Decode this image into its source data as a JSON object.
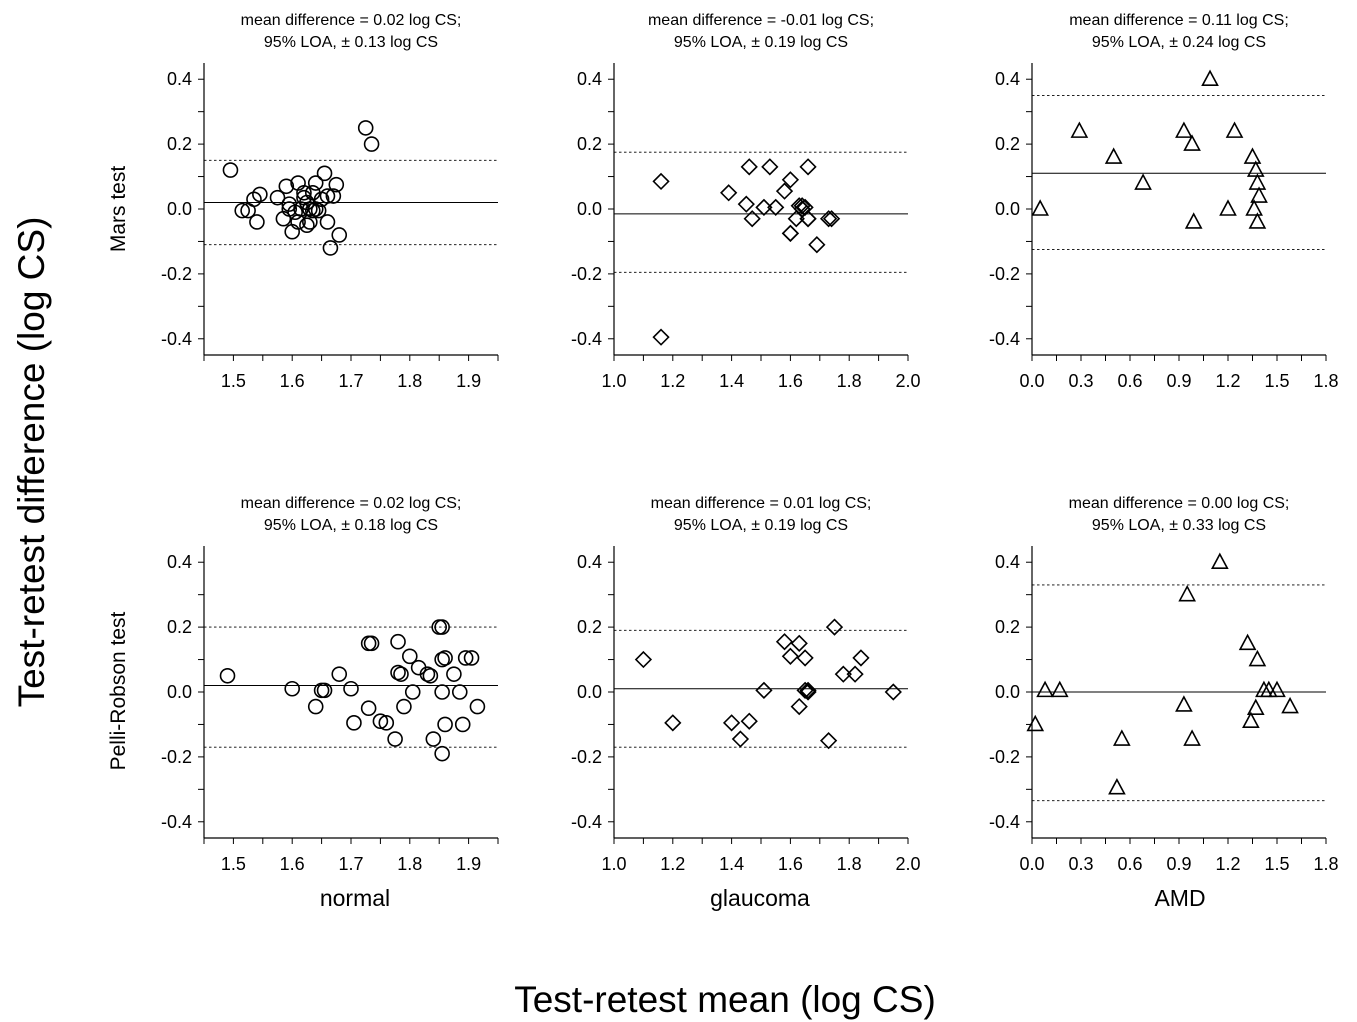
{
  "figure": {
    "ylabel": "Test-retest difference (log CS)",
    "xlabel": "Test-retest mean (log CS)",
    "row_labels": [
      "Mars test",
      "Pelli-Robson test"
    ],
    "col_labels": [
      "normal",
      "glaucoma",
      "AMD"
    ]
  },
  "chart_data": [
    {
      "type": "scatter",
      "row": 0,
      "col": 0,
      "marker": "circle",
      "title": [
        "mean difference = 0.02 log CS;",
        "95% LOA, ± 0.13 log CS"
      ],
      "xlim": [
        1.45,
        1.95
      ],
      "ylim": [
        -0.45,
        0.45
      ],
      "xticks": [
        1.5,
        1.6,
        1.7,
        1.8,
        1.9
      ],
      "xticklabels": [
        "1.5",
        "1.6",
        "1.7",
        "1.8",
        "1.9"
      ],
      "yticks": [
        -0.4,
        -0.2,
        0.0,
        0.2,
        0.4
      ],
      "yticklabels": [
        "-0.4",
        "-0.2",
        "0.0",
        "0.2",
        "0.4"
      ],
      "mean_line": 0.02,
      "loa_upper": 0.15,
      "loa_lower": -0.11,
      "points": [
        [
          1.495,
          0.12
        ],
        [
          1.515,
          -0.005
        ],
        [
          1.525,
          -0.005
        ],
        [
          1.535,
          0.03
        ],
        [
          1.54,
          -0.04
        ],
        [
          1.545,
          0.045
        ],
        [
          1.575,
          0.035
        ],
        [
          1.585,
          -0.03
        ],
        [
          1.59,
          0.07
        ],
        [
          1.595,
          0.015
        ],
        [
          1.595,
          0.0
        ],
        [
          1.6,
          -0.07
        ],
        [
          1.605,
          -0.01
        ],
        [
          1.61,
          -0.04
        ],
        [
          1.61,
          0.08
        ],
        [
          1.615,
          0.0
        ],
        [
          1.62,
          0.05
        ],
        [
          1.62,
          0.035
        ],
        [
          1.625,
          -0.05
        ],
        [
          1.625,
          0.02
        ],
        [
          1.63,
          0.0
        ],
        [
          1.63,
          -0.04
        ],
        [
          1.635,
          0.05
        ],
        [
          1.635,
          -0.005
        ],
        [
          1.64,
          0.08
        ],
        [
          1.64,
          0.0
        ],
        [
          1.645,
          -0.005
        ],
        [
          1.65,
          0.03
        ],
        [
          1.655,
          0.11
        ],
        [
          1.66,
          0.04
        ],
        [
          1.66,
          -0.04
        ],
        [
          1.665,
          -0.12
        ],
        [
          1.67,
          0.04
        ],
        [
          1.675,
          0.075
        ],
        [
          1.68,
          -0.08
        ],
        [
          1.725,
          0.25
        ],
        [
          1.735,
          0.2
        ]
      ]
    },
    {
      "type": "scatter",
      "row": 0,
      "col": 1,
      "marker": "diamond",
      "title": [
        "mean difference = -0.01 log CS;",
        "95% LOA, ± 0.19 log CS"
      ],
      "xlim": [
        1.0,
        2.0
      ],
      "ylim": [
        -0.45,
        0.45
      ],
      "xticks": [
        1.0,
        1.2,
        1.4,
        1.6,
        1.8,
        2.0
      ],
      "xticklabels": [
        "1.0",
        "1.2",
        "1.4",
        "1.6",
        "1.8",
        "2.0"
      ],
      "yticks": [
        -0.4,
        -0.2,
        0.0,
        0.2,
        0.4
      ],
      "yticklabels": [
        "-0.4",
        "-0.2",
        "0.0",
        "0.2",
        "0.4"
      ],
      "mean_line": -0.015,
      "loa_upper": 0.175,
      "loa_lower": -0.195,
      "points": [
        [
          1.16,
          0.085
        ],
        [
          1.16,
          -0.395
        ],
        [
          1.39,
          0.05
        ],
        [
          1.45,
          0.015
        ],
        [
          1.46,
          0.13
        ],
        [
          1.47,
          -0.03
        ],
        [
          1.51,
          0.005
        ],
        [
          1.53,
          0.13
        ],
        [
          1.55,
          0.005
        ],
        [
          1.58,
          0.055
        ],
        [
          1.6,
          0.09
        ],
        [
          1.6,
          -0.075
        ],
        [
          1.6,
          -0.075
        ],
        [
          1.62,
          -0.03
        ],
        [
          1.63,
          0.01
        ],
        [
          1.64,
          0.0
        ],
        [
          1.64,
          0.01
        ],
        [
          1.65,
          0.005
        ],
        [
          1.66,
          0.13
        ],
        [
          1.66,
          -0.03
        ],
        [
          1.66,
          -0.03
        ],
        [
          1.69,
          -0.11
        ],
        [
          1.73,
          -0.03
        ],
        [
          1.74,
          -0.03
        ]
      ]
    },
    {
      "type": "scatter",
      "row": 0,
      "col": 2,
      "marker": "triangle",
      "title": [
        "mean difference = 0.11 log CS;",
        "95% LOA, ± 0.24 log CS"
      ],
      "xlim": [
        0.0,
        1.8
      ],
      "ylim": [
        -0.45,
        0.45
      ],
      "xticks": [
        0.0,
        0.3,
        0.6,
        0.9,
        1.2,
        1.5,
        1.8
      ],
      "xticklabels": [
        "0.0",
        "0.3",
        "0.6",
        "0.9",
        "1.2",
        "1.5",
        "1.8"
      ],
      "yticks": [
        -0.4,
        -0.2,
        0.0,
        0.2,
        0.4
      ],
      "yticklabels": [
        "-0.4",
        "-0.2",
        "0.0",
        "0.2",
        "0.4"
      ],
      "mean_line": 0.11,
      "loa_upper": 0.35,
      "loa_lower": -0.125,
      "points": [
        [
          0.05,
          0.0
        ],
        [
          0.29,
          0.24
        ],
        [
          0.5,
          0.16
        ],
        [
          0.68,
          0.08
        ],
        [
          0.93,
          0.24
        ],
        [
          0.98,
          0.2
        ],
        [
          0.99,
          -0.04
        ],
        [
          1.09,
          0.4
        ],
        [
          1.2,
          0.0
        ],
        [
          1.24,
          0.24
        ],
        [
          1.35,
          0.16
        ],
        [
          1.37,
          0.12
        ],
        [
          1.38,
          0.08
        ],
        [
          1.39,
          0.04
        ],
        [
          1.36,
          0.0
        ],
        [
          1.38,
          -0.04
        ]
      ]
    },
    {
      "type": "scatter",
      "row": 1,
      "col": 0,
      "marker": "circle",
      "title": [
        "mean difference = 0.02 log CS;",
        "95% LOA, ± 0.18 log CS"
      ],
      "xlim": [
        1.45,
        1.95
      ],
      "ylim": [
        -0.45,
        0.45
      ],
      "xticks": [
        1.5,
        1.6,
        1.7,
        1.8,
        1.9
      ],
      "xticklabels": [
        "1.5",
        "1.6",
        "1.7",
        "1.8",
        "1.9"
      ],
      "yticks": [
        -0.4,
        -0.2,
        0.0,
        0.2,
        0.4
      ],
      "yticklabels": [
        "-0.4",
        "-0.2",
        "0.0",
        "0.2",
        "0.4"
      ],
      "mean_line": 0.02,
      "loa_upper": 0.2,
      "loa_lower": -0.17,
      "points": [
        [
          1.49,
          0.05
        ],
        [
          1.6,
          0.01
        ],
        [
          1.64,
          -0.045
        ],
        [
          1.65,
          0.005
        ],
        [
          1.655,
          0.005
        ],
        [
          1.68,
          0.055
        ],
        [
          1.7,
          0.01
        ],
        [
          1.705,
          -0.095
        ],
        [
          1.73,
          0.15
        ],
        [
          1.735,
          0.15
        ],
        [
          1.73,
          -0.05
        ],
        [
          1.75,
          -0.09
        ],
        [
          1.76,
          -0.095
        ],
        [
          1.775,
          -0.145
        ],
        [
          1.78,
          0.155
        ],
        [
          1.78,
          0.06
        ],
        [
          1.785,
          0.055
        ],
        [
          1.79,
          -0.045
        ],
        [
          1.8,
          0.11
        ],
        [
          1.805,
          0.0
        ],
        [
          1.815,
          0.075
        ],
        [
          1.83,
          0.055
        ],
        [
          1.835,
          0.05
        ],
        [
          1.84,
          -0.145
        ],
        [
          1.85,
          0.2
        ],
        [
          1.855,
          0.2
        ],
        [
          1.855,
          0.1
        ],
        [
          1.855,
          0.0
        ],
        [
          1.86,
          0.105
        ],
        [
          1.855,
          -0.19
        ],
        [
          1.86,
          -0.1
        ],
        [
          1.875,
          0.055
        ],
        [
          1.885,
          0.0
        ],
        [
          1.895,
          0.105
        ],
        [
          1.905,
          0.105
        ],
        [
          1.89,
          -0.1
        ],
        [
          1.915,
          -0.045
        ]
      ]
    },
    {
      "type": "scatter",
      "row": 1,
      "col": 1,
      "marker": "diamond",
      "title": [
        "mean difference = 0.01 log CS;",
        "95% LOA, ± 0.19 log CS"
      ],
      "xlim": [
        1.0,
        2.0
      ],
      "ylim": [
        -0.45,
        0.45
      ],
      "xticks": [
        1.0,
        1.2,
        1.4,
        1.6,
        1.8,
        2.0
      ],
      "xticklabels": [
        "1.0",
        "1.2",
        "1.4",
        "1.6",
        "1.8",
        "2.0"
      ],
      "yticks": [
        -0.4,
        -0.2,
        0.0,
        0.2,
        0.4
      ],
      "yticklabels": [
        "-0.4",
        "-0.2",
        "0.0",
        "0.2",
        "0.4"
      ],
      "mean_line": 0.01,
      "loa_upper": 0.19,
      "loa_lower": -0.17,
      "points": [
        [
          1.1,
          0.1
        ],
        [
          1.2,
          -0.095
        ],
        [
          1.4,
          -0.095
        ],
        [
          1.43,
          -0.145
        ],
        [
          1.46,
          -0.09
        ],
        [
          1.51,
          0.005
        ],
        [
          1.58,
          0.155
        ],
        [
          1.6,
          0.11
        ],
        [
          1.63,
          0.15
        ],
        [
          1.63,
          -0.045
        ],
        [
          1.65,
          0.105
        ],
        [
          1.65,
          0.005
        ],
        [
          1.66,
          0.0
        ],
        [
          1.66,
          0.005
        ],
        [
          1.73,
          -0.15
        ],
        [
          1.75,
          0.2
        ],
        [
          1.78,
          0.055
        ],
        [
          1.82,
          0.055
        ],
        [
          1.84,
          0.105
        ],
        [
          1.95,
          0.0
        ]
      ]
    },
    {
      "type": "scatter",
      "row": 1,
      "col": 2,
      "marker": "triangle",
      "title": [
        "mean difference = 0.00 log CS;",
        "95% LOA, ± 0.33 log CS"
      ],
      "xlim": [
        0.0,
        1.8
      ],
      "ylim": [
        -0.45,
        0.45
      ],
      "xticks": [
        0.0,
        0.3,
        0.6,
        0.9,
        1.2,
        1.5,
        1.8
      ],
      "xticklabels": [
        "0.0",
        "0.3",
        "0.6",
        "0.9",
        "1.2",
        "1.5",
        "1.8"
      ],
      "yticks": [
        -0.4,
        -0.2,
        0.0,
        0.2,
        0.4
      ],
      "yticklabels": [
        "-0.4",
        "-0.2",
        "0.0",
        "0.2",
        "0.4"
      ],
      "mean_line": 0.0,
      "loa_upper": 0.33,
      "loa_lower": -0.335,
      "points": [
        [
          0.02,
          -0.1
        ],
        [
          0.08,
          0.005
        ],
        [
          0.17,
          0.005
        ],
        [
          0.52,
          -0.295
        ],
        [
          0.55,
          -0.145
        ],
        [
          0.93,
          -0.04
        ],
        [
          0.95,
          0.3
        ],
        [
          0.98,
          -0.145
        ],
        [
          1.15,
          0.4
        ],
        [
          1.32,
          0.15
        ],
        [
          1.34,
          -0.09
        ],
        [
          1.37,
          -0.05
        ],
        [
          1.38,
          0.1
        ],
        [
          1.42,
          0.005
        ],
        [
          1.45,
          0.005
        ],
        [
          1.5,
          0.005
        ],
        [
          1.58,
          -0.045
        ]
      ]
    }
  ]
}
